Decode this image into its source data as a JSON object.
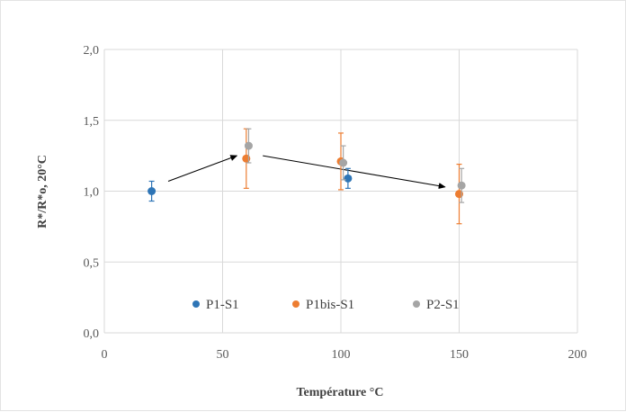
{
  "chart_data": {
    "type": "scatter",
    "xlabel": "Température °C",
    "ylabel": "R*/R*o, 20°C",
    "xlim": [
      0,
      200
    ],
    "ylim": [
      0,
      2
    ],
    "x_ticks": [
      0,
      50,
      100,
      150,
      200
    ],
    "x_tick_labels": [
      "0",
      "50",
      "100",
      "150",
      "200"
    ],
    "y_ticks": [
      0,
      0.5,
      1,
      1.5,
      2
    ],
    "y_tick_labels": [
      "0,0",
      "0,5",
      "1,0",
      "1,5",
      "2,0"
    ],
    "grid": true,
    "legend_position": "bottom-inside",
    "series": [
      {
        "name": "P1-S1",
        "color": "#2e75b6",
        "points": [
          {
            "x": 20,
            "y": 1.0,
            "err": 0.07
          },
          {
            "x": 103,
            "y": 1.09,
            "err": 0.07
          }
        ]
      },
      {
        "name": "P1bis-S1",
        "color": "#ed7d31",
        "points": [
          {
            "x": 60,
            "y": 1.23,
            "err": 0.21
          },
          {
            "x": 100,
            "y": 1.21,
            "err": 0.2
          },
          {
            "x": 150,
            "y": 0.98,
            "err": 0.21
          }
        ]
      },
      {
        "name": "P2-S1",
        "color": "#a5a5a5",
        "points": [
          {
            "x": 61,
            "y": 1.32,
            "err": 0.12
          },
          {
            "x": 101,
            "y": 1.2,
            "err": 0.12
          },
          {
            "x": 151,
            "y": 1.04,
            "err": 0.12
          }
        ]
      }
    ],
    "annotations": [
      {
        "type": "arrow",
        "from": [
          27,
          1.07
        ],
        "to": [
          56,
          1.25
        ]
      },
      {
        "type": "arrow",
        "from": [
          67,
          1.25
        ],
        "to": [
          144,
          1.03
        ]
      }
    ]
  }
}
